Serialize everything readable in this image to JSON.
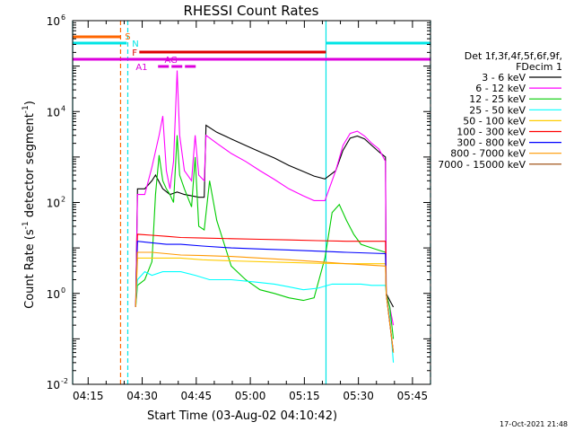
{
  "chart_data": {
    "type": "line",
    "title": "RHESSI Count Rates",
    "xlabel": "Start Time (03-Aug-02 04:10:42)",
    "ylabel": "Count Rate (s",
    "ylabel_sup1": "-1",
    "ylabel_mid": " detector segment",
    "ylabel_sup2": "-1",
    "ylabel_end": ")",
    "y_scale": "log",
    "ylim": [
      0.01,
      1000000
    ],
    "xlim_minutes": [
      0,
      99.3
    ],
    "x_ticks": [
      {
        "label": "04:15",
        "minute": 4.3
      },
      {
        "label": "04:30",
        "minute": 19.3
      },
      {
        "label": "04:45",
        "minute": 34.3
      },
      {
        "label": "05:00",
        "minute": 49.3
      },
      {
        "label": "05:15",
        "minute": 64.3
      },
      {
        "label": "05:30",
        "minute": 79.3
      },
      {
        "label": "05:45",
        "minute": 94.3
      }
    ],
    "y_ticks": [
      {
        "base": "10",
        "exp": "-2",
        "value": 0.01
      },
      {
        "base": "10",
        "exp": "0",
        "value": 1
      },
      {
        "base": "10",
        "exp": "2",
        "value": 100
      },
      {
        "base": "10",
        "exp": "4",
        "value": 10000
      },
      {
        "base": "10",
        "exp": "6",
        "value": 1000000
      }
    ],
    "legend_title_1": "Det 1f,3f,4f,5f,6f,9f,",
    "legend_title_2": "FDecim 1",
    "legend_position": "right",
    "series": [
      {
        "name": "3 - 6 keV",
        "color": "#000000",
        "points": [
          [
            17.5,
            0.5
          ],
          [
            18,
            200
          ],
          [
            20,
            200
          ],
          [
            22,
            300
          ],
          [
            23,
            400
          ],
          [
            25,
            200
          ],
          [
            27,
            150
          ],
          [
            29,
            170
          ],
          [
            31,
            150
          ],
          [
            33,
            140
          ],
          [
            35,
            130
          ],
          [
            36.5,
            130
          ],
          [
            37,
            5000
          ],
          [
            40,
            3500
          ],
          [
            44,
            2500
          ],
          [
            48,
            1800
          ],
          [
            52,
            1300
          ],
          [
            56,
            950
          ],
          [
            60,
            650
          ],
          [
            64,
            480
          ],
          [
            67,
            380
          ],
          [
            70,
            330
          ],
          [
            73,
            500
          ],
          [
            75,
            1400
          ],
          [
            77,
            2600
          ],
          [
            79,
            2900
          ],
          [
            81,
            2500
          ],
          [
            83,
            1800
          ],
          [
            85,
            1300
          ],
          [
            86.8,
            1000
          ],
          [
            87,
            1
          ],
          [
            88,
            0.7
          ],
          [
            89,
            0.5
          ]
        ]
      },
      {
        "name": "6 - 12 keV",
        "color": "#ff00ff",
        "points": [
          [
            17.5,
            0.5
          ],
          [
            18,
            150
          ],
          [
            20,
            150
          ],
          [
            22,
            600
          ],
          [
            24,
            3000
          ],
          [
            25,
            8000
          ],
          [
            26,
            500
          ],
          [
            27,
            200
          ],
          [
            28,
            800
          ],
          [
            29,
            80000
          ],
          [
            29.7,
            3000
          ],
          [
            31,
            500
          ],
          [
            33,
            300
          ],
          [
            34,
            3000
          ],
          [
            35,
            400
          ],
          [
            36.5,
            300
          ],
          [
            37,
            3000
          ],
          [
            40,
            2000
          ],
          [
            44,
            1200
          ],
          [
            48,
            800
          ],
          [
            52,
            500
          ],
          [
            56,
            320
          ],
          [
            60,
            200
          ],
          [
            64,
            140
          ],
          [
            67,
            110
          ],
          [
            70,
            110
          ],
          [
            73,
            500
          ],
          [
            75,
            1800
          ],
          [
            77,
            3300
          ],
          [
            79,
            3700
          ],
          [
            81,
            2900
          ],
          [
            83,
            2000
          ],
          [
            85,
            1500
          ],
          [
            86.8,
            800
          ],
          [
            87,
            1
          ],
          [
            88,
            0.5
          ],
          [
            89,
            0.2
          ]
        ]
      },
      {
        "name": "12 - 25 keV",
        "color": "#00cc00",
        "points": [
          [
            17.5,
            0.5
          ],
          [
            18,
            1.5
          ],
          [
            20,
            2
          ],
          [
            22,
            5
          ],
          [
            23,
            150
          ],
          [
            24,
            1100
          ],
          [
            25,
            300
          ],
          [
            26,
            200
          ],
          [
            27,
            150
          ],
          [
            28,
            100
          ],
          [
            29,
            3000
          ],
          [
            29.7,
            400
          ],
          [
            31,
            200
          ],
          [
            33,
            80
          ],
          [
            34,
            1000
          ],
          [
            35,
            30
          ],
          [
            36.5,
            25
          ],
          [
            38,
            300
          ],
          [
            40,
            40
          ],
          [
            44,
            4
          ],
          [
            48,
            2
          ],
          [
            52,
            1.2
          ],
          [
            56,
            1
          ],
          [
            60,
            0.8
          ],
          [
            64,
            0.7
          ],
          [
            67,
            0.8
          ],
          [
            70,
            6
          ],
          [
            72,
            60
          ],
          [
            74,
            90
          ],
          [
            76,
            40
          ],
          [
            78,
            20
          ],
          [
            80,
            12
          ],
          [
            83,
            10
          ],
          [
            86.8,
            8
          ],
          [
            87,
            1
          ],
          [
            88,
            0.5
          ],
          [
            89,
            0.1
          ]
        ]
      },
      {
        "name": "25 - 50 keV",
        "color": "#00ffff",
        "points": [
          [
            17.5,
            0.5
          ],
          [
            18,
            2
          ],
          [
            20,
            3
          ],
          [
            22,
            2.5
          ],
          [
            25,
            3
          ],
          [
            29,
            3
          ],
          [
            30,
            3
          ],
          [
            34,
            2.5
          ],
          [
            38,
            2
          ],
          [
            44,
            2
          ],
          [
            50,
            1.8
          ],
          [
            56,
            1.6
          ],
          [
            60,
            1.4
          ],
          [
            64,
            1.2
          ],
          [
            68,
            1.3
          ],
          [
            72,
            1.6
          ],
          [
            76,
            1.6
          ],
          [
            80,
            1.6
          ],
          [
            83,
            1.5
          ],
          [
            86.8,
            1.5
          ],
          [
            87,
            1
          ],
          [
            88,
            0.3
          ],
          [
            89,
            0.03
          ]
        ]
      },
      {
        "name": "50 - 100 keV",
        "color": "#ffcc00",
        "points": [
          [
            17.5,
            0.5
          ],
          [
            18,
            6
          ],
          [
            22,
            6
          ],
          [
            26,
            6
          ],
          [
            30,
            6
          ],
          [
            36,
            5.5
          ],
          [
            44,
            5.2
          ],
          [
            52,
            5
          ],
          [
            60,
            4.8
          ],
          [
            68,
            4.6
          ],
          [
            76,
            4.5
          ],
          [
            86.8,
            4.5
          ],
          [
            87,
            1
          ],
          [
            89,
            0.05
          ]
        ]
      },
      {
        "name": "100 - 300 keV",
        "color": "#ff0000",
        "points": [
          [
            17.5,
            0.5
          ],
          [
            18,
            20
          ],
          [
            22,
            19
          ],
          [
            26,
            18
          ],
          [
            30,
            17
          ],
          [
            36,
            16.5
          ],
          [
            44,
            16
          ],
          [
            52,
            15.5
          ],
          [
            60,
            15
          ],
          [
            68,
            14.5
          ],
          [
            76,
            14
          ],
          [
            86.8,
            14
          ],
          [
            87,
            1
          ],
          [
            89,
            0.05
          ]
        ]
      },
      {
        "name": "300 - 800 keV",
        "color": "#0000ff",
        "points": [
          [
            17.5,
            0.5
          ],
          [
            18,
            14
          ],
          [
            22,
            13
          ],
          [
            26,
            12
          ],
          [
            30,
            12
          ],
          [
            36,
            11
          ],
          [
            44,
            10
          ],
          [
            52,
            9.5
          ],
          [
            60,
            9
          ],
          [
            68,
            8.5
          ],
          [
            76,
            8
          ],
          [
            86.8,
            7.5
          ],
          [
            87,
            1
          ],
          [
            89,
            0.05
          ]
        ]
      },
      {
        "name": "800 - 7000 keV",
        "color": "#ff9900",
        "points": [
          [
            17.5,
            0.5
          ],
          [
            18,
            8
          ],
          [
            22,
            8
          ],
          [
            26,
            7.5
          ],
          [
            30,
            7
          ],
          [
            36,
            6.8
          ],
          [
            44,
            6.5
          ],
          [
            52,
            6
          ],
          [
            60,
            5.5
          ],
          [
            68,
            5
          ],
          [
            76,
            4.5
          ],
          [
            86.8,
            4
          ],
          [
            87,
            1
          ],
          [
            89,
            0.05
          ]
        ]
      },
      {
        "name": "7000 - 15000 keV",
        "color": "#994400",
        "points": []
      }
    ],
    "attenuator_states": {
      "S": {
        "color": "#ff6600",
        "segments": [
          [
            0,
            13.3
          ]
        ],
        "level": 1.55
      },
      "N": {
        "color": "#00e5e5",
        "segments": [
          [
            0,
            15
          ],
          [
            70.3,
            99.3
          ]
        ],
        "level": 1.45
      },
      "F": {
        "color": "#dd0000",
        "segments": [
          [
            18.5,
            70.3
          ]
        ],
        "level": 1.35
      },
      "AG": {
        "color": "#dd00dd",
        "segments": [
          [
            23.7,
            34.3
          ]
        ],
        "level": 1.22
      },
      "A1": {
        "color": "#dd00dd",
        "segments": [
          [
            0,
            99.3
          ]
        ],
        "level": 1.18
      }
    },
    "vertical_markers": [
      {
        "minute": 0,
        "color": "#00e5e5",
        "style": "solid"
      },
      {
        "minute": 13.3,
        "color": "#ff6600",
        "style": "dashed"
      },
      {
        "minute": 15.3,
        "color": "#00e5e5",
        "style": "dashed"
      },
      {
        "minute": 70.3,
        "color": "#00e5e5",
        "style": "solid"
      },
      {
        "minute": 99.3,
        "color": "#00e5e5",
        "style": "dashed"
      }
    ]
  },
  "footer": {
    "timestamp": "17-Oct-2021 21:48"
  }
}
